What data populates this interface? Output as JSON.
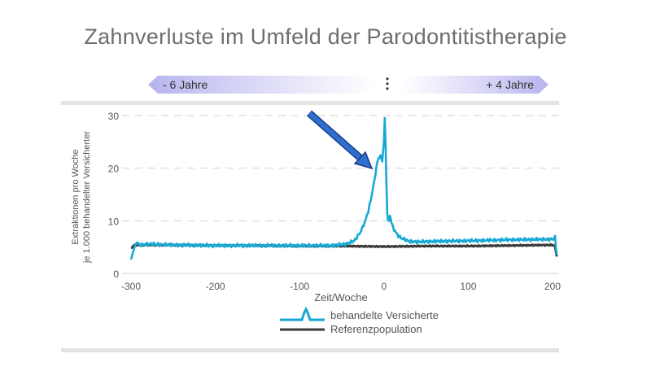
{
  "title": "Zahnverluste im Umfeld der Parodontitistherapie",
  "banner_left": "- 6 Jahre",
  "banner_right": "+ 4 Jahre",
  "colors": {
    "treated": "#17a9d6",
    "reference": "#3a3a3a",
    "arrow": "#2454a8",
    "grid": "#d2d2d2",
    "banner": "#b7b4ee"
  },
  "chart_data": {
    "type": "line",
    "xlabel": "Zeit/Woche",
    "ylabel_line1": "Extraktionen pro Woche",
    "ylabel_line2": "je 1.000 behandelter Versicherter",
    "xlim": [
      -305,
      208
    ],
    "ylim": [
      0,
      30
    ],
    "x_ticks": [
      -300,
      -200,
      -100,
      0,
      100,
      200
    ],
    "y_ticks": [
      0,
      10,
      20,
      30
    ],
    "grid": "horizontal dashed",
    "legend_position": "bottom-center",
    "series": [
      {
        "name": "behandelte Versicherte",
        "color": "#17a9d6",
        "x": [
          -300,
          -297,
          -293,
          -290,
          -280,
          -250,
          -200,
          -150,
          -100,
          -60,
          -45,
          -35,
          -28,
          -22,
          -18,
          -15,
          -12,
          -10,
          -8,
          -6,
          -4,
          -2,
          0,
          1,
          2,
          3,
          4,
          5,
          6,
          7,
          8,
          10,
          14,
          18,
          22,
          30,
          40,
          60,
          100,
          150,
          200,
          203,
          205
        ],
        "y": [
          2.5,
          4.5,
          6,
          5.4,
          5.6,
          5.4,
          5.3,
          5.3,
          5.3,
          5.3,
          5.6,
          6.2,
          7.8,
          10,
          12.2,
          14.5,
          17,
          19,
          21,
          22,
          22.3,
          21.5,
          25,
          29.5,
          24,
          17,
          11.5,
          9.8,
          10,
          11,
          10.5,
          9,
          7.8,
          7,
          6.6,
          6.1,
          6,
          6.1,
          6.2,
          6.4,
          6.5,
          6.8,
          3.5
        ]
      },
      {
        "name": "Referenzpopulation",
        "color": "#3a3a3a",
        "x": [
          -300,
          -296,
          -250,
          -200,
          -150,
          -100,
          -50,
          0,
          50,
          100,
          150,
          200,
          203,
          205
        ],
        "y": [
          4.8,
          5.4,
          5.4,
          5.3,
          5.3,
          5.2,
          5.2,
          5.1,
          5.2,
          5.2,
          5.3,
          5.4,
          5.2,
          3.2
        ]
      }
    ],
    "annotation": "arrow pointing to pre-treatment peak"
  }
}
